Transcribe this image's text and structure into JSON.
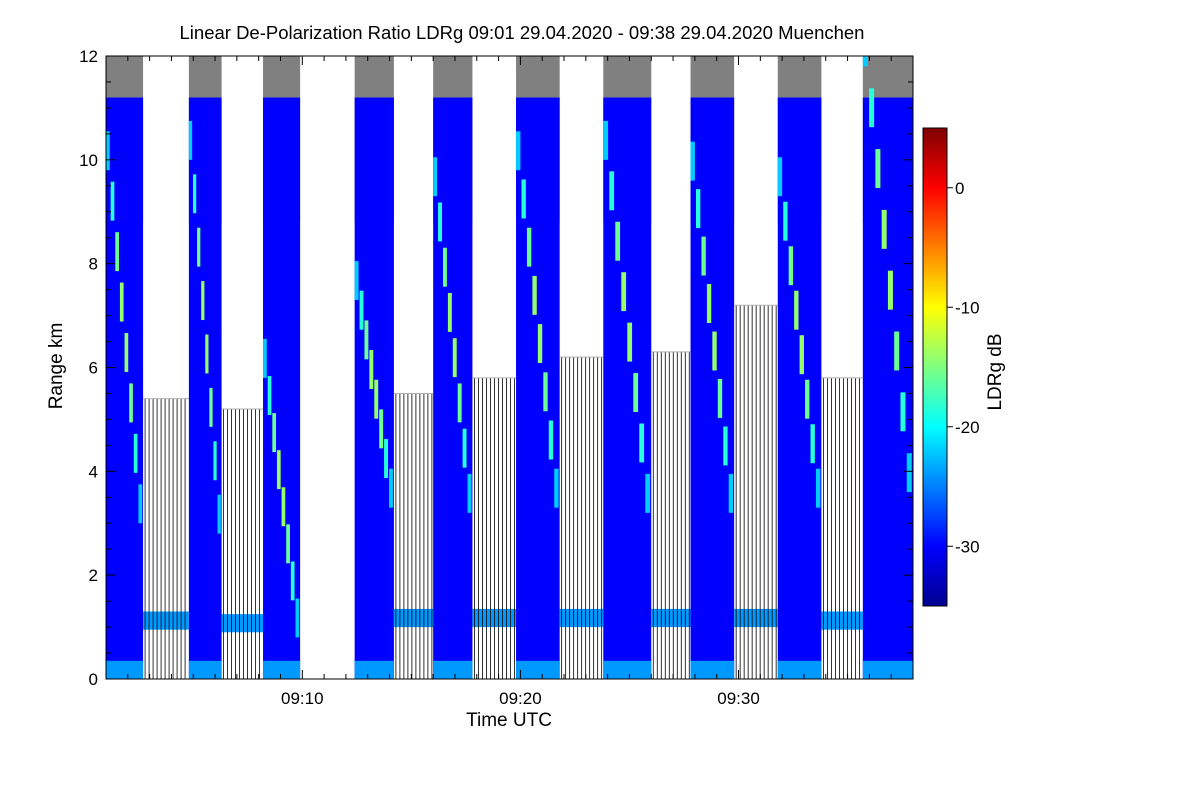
{
  "chart_data": {
    "type": "heatmap",
    "title": "Linear De-Polarization Ratio LDRg   09:01 29.04.2020 - 09:38 29.04.2020 Muenchen",
    "xlabel": "Time UTC",
    "ylabel": "Range km",
    "x_range_minutes_utc": [
      541,
      578
    ],
    "y_range_km": [
      0,
      12
    ],
    "x_ticks": [
      {
        "minute": 550,
        "label": "09:10"
      },
      {
        "minute": 560,
        "label": "09:20"
      },
      {
        "minute": 570,
        "label": "09:30"
      }
    ],
    "y_ticks": [
      {
        "value": 0,
        "label": "0"
      },
      {
        "value": 2,
        "label": "2"
      },
      {
        "value": 4,
        "label": "4"
      },
      {
        "value": 6,
        "label": "6"
      },
      {
        "value": 8,
        "label": "8"
      },
      {
        "value": 10,
        "label": "10"
      },
      {
        "value": 12,
        "label": "12"
      }
    ],
    "colorbar": {
      "label": "LDRg dB",
      "range_db": [
        -35,
        5
      ],
      "colormap": "jet",
      "ticks": [
        {
          "value": 0,
          "label": "0"
        },
        {
          "value": -10,
          "label": "-10"
        },
        {
          "value": -20,
          "label": "-20"
        },
        {
          "value": -30,
          "label": "-30"
        }
      ]
    },
    "background_ldr_db": -30,
    "no_signal_color": "#808080",
    "no_data_color": "#ffffff",
    "data_gaps_minutes": [
      [
        549.9,
        552.4
      ]
    ],
    "scan_segments": [
      {
        "start_min": 541.0,
        "end_min": 542.7,
        "lines_start_min": 542.7,
        "lines_end_min": 544.8,
        "top_km": 12.0,
        "layer_start_km": 10.0,
        "layer_end_km": 3.2,
        "cap_km": 5.4,
        "base_km": 1.05
      },
      {
        "start_min": 544.8,
        "end_min": 546.3,
        "lines_start_min": 546.3,
        "lines_end_min": 548.2,
        "top_km": 12.0,
        "layer_start_km": 10.2,
        "layer_end_km": 3.0,
        "cap_km": 5.2,
        "base_km": 1.0
      },
      {
        "start_min": 548.2,
        "end_min": 549.9,
        "lines_start_min": null,
        "lines_end_min": null,
        "top_km": 12.0,
        "layer_start_km": 6.0,
        "layer_end_km": 1.0,
        "cap_km": null,
        "base_km": null
      },
      {
        "start_min": 552.4,
        "end_min": 554.2,
        "lines_start_min": 554.2,
        "lines_end_min": 556.0,
        "top_km": 12.0,
        "layer_start_km": 7.5,
        "layer_end_km": 3.5,
        "cap_km": 5.5,
        "base_km": 1.1
      },
      {
        "start_min": 556.0,
        "end_min": 557.8,
        "lines_start_min": 557.8,
        "lines_end_min": 559.8,
        "top_km": 12.0,
        "layer_start_km": 9.5,
        "layer_end_km": 3.4,
        "cap_km": 5.8,
        "base_km": 1.1
      },
      {
        "start_min": 559.8,
        "end_min": 561.8,
        "lines_start_min": 561.8,
        "lines_end_min": 563.8,
        "top_km": 12.0,
        "layer_start_km": 10.0,
        "layer_end_km": 3.5,
        "cap_km": 6.2,
        "base_km": 1.1
      },
      {
        "start_min": 563.8,
        "end_min": 566.0,
        "lines_start_min": 566.0,
        "lines_end_min": 567.8,
        "top_km": 12.0,
        "layer_start_km": 10.2,
        "layer_end_km": 3.4,
        "cap_km": 6.3,
        "base_km": 1.1
      },
      {
        "start_min": 567.8,
        "end_min": 569.8,
        "lines_start_min": 569.8,
        "lines_end_min": 571.8,
        "top_km": 12.0,
        "layer_start_km": 9.8,
        "layer_end_km": 3.4,
        "cap_km": 7.2,
        "base_km": 1.1
      },
      {
        "start_min": 571.8,
        "end_min": 573.8,
        "lines_start_min": 573.8,
        "lines_end_min": 575.7,
        "top_km": 12.0,
        "layer_start_km": 9.5,
        "layer_end_km": 3.5,
        "cap_km": 5.8,
        "base_km": 1.05
      },
      {
        "start_min": 575.7,
        "end_min": 578.0,
        "lines_start_min": null,
        "lines_end_min": null,
        "top_km": 12.0,
        "layer_start_km": 12.0,
        "layer_end_km": 3.8,
        "cap_km": null,
        "base_km": null
      }
    ]
  }
}
